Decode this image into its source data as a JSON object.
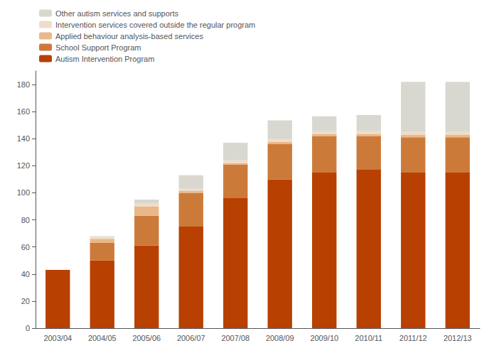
{
  "chart_data": {
    "type": "bar",
    "stacked": true,
    "categories": [
      "2003/04",
      "2004/05",
      "2005/06",
      "2006/07",
      "2007/08",
      "2008/09",
      "2009/10",
      "2010/11",
      "2011/12",
      "2012/13"
    ],
    "series": [
      {
        "name": "Autism Intervention Program",
        "color": "#b84000",
        "values": [
          43,
          50,
          61,
          75,
          96,
          110,
          115,
          117,
          115,
          115
        ]
      },
      {
        "name": "School Support Program",
        "color": "#cc7a3a",
        "values": [
          0,
          13,
          22,
          25,
          25,
          26,
          27,
          25,
          26,
          26
        ]
      },
      {
        "name": "Applied behaviour analysis-based services",
        "color": "#e8b888",
        "values": [
          0,
          3,
          7,
          1.5,
          1,
          1.5,
          1.5,
          1.5,
          2,
          2
        ]
      },
      {
        "name": "Intervention services covered outside the regular program",
        "color": "#f2dcc8",
        "values": [
          0,
          1.5,
          2,
          1.5,
          2,
          2,
          2,
          2,
          2,
          2
        ]
      },
      {
        "name": "Other autism services and supports",
        "color": "#d8d8d0",
        "values": [
          0,
          0.5,
          3,
          10,
          13,
          14,
          11,
          12,
          37,
          37
        ]
      }
    ],
    "ylim": [
      0,
      190
    ],
    "yticks": [
      0,
      20,
      40,
      60,
      80,
      100,
      120,
      140,
      160,
      180
    ],
    "grid": false,
    "legend": "upper left"
  }
}
